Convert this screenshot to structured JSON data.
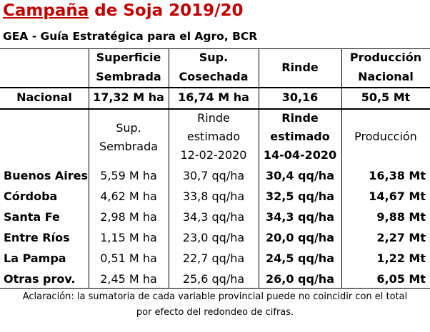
{
  "title_prefix": "Campaña",
  "title_rest": " de Soja 2019/20",
  "subtitle": "GEA - Guía Estratégica para el Agro, BCR",
  "header1": {
    "col1": [
      "Superficie",
      "Sembrada"
    ],
    "col2": [
      "Sup.",
      "Cosechada"
    ],
    "col3": "Rinde",
    "col4": [
      "Producción",
      "Nacional"
    ]
  },
  "national": {
    "label": "Nacional",
    "surface": "17,32 M ha",
    "harvested": "16,74 M ha",
    "yield": "30,16",
    "production": "50,5 Mt"
  },
  "header2": {
    "col1": [
      "Sup.",
      "Sembrada"
    ],
    "col2": [
      "Rinde",
      "estimado",
      "12-02-2020"
    ],
    "col3": [
      "Rinde",
      "estimado",
      "14-04-2020"
    ],
    "col4": "Producción"
  },
  "provinces": [
    {
      "name": "Buenos Aires",
      "surface": "5,59 M ha",
      "yield_feb": "30,7 qq/ha",
      "yield_apr": "30,4 qq/ha",
      "production": "16,38 Mt"
    },
    {
      "name": "Córdoba",
      "surface": "4,62 M ha",
      "yield_feb": "33,8 qq/ha",
      "yield_apr": "32,5 qq/ha",
      "production": "14,67 Mt"
    },
    {
      "name": "Santa Fe",
      "surface": "2,98 M ha",
      "yield_feb": "34,3 qq/ha",
      "yield_apr": "34,3 qq/ha",
      "production": "9,88 Mt"
    },
    {
      "name": "Entre Ríos",
      "surface": "1,15 M ha",
      "yield_feb": "23,0 qq/ha",
      "yield_apr": "20,0 qq/ha",
      "production": "2,27 Mt"
    },
    {
      "name": "La Pampa",
      "surface": "0,51 M ha",
      "yield_feb": "22,7 qq/ha",
      "yield_apr": "24,5 qq/ha",
      "production": "1,22 Mt"
    },
    {
      "name": "Otras prov.",
      "surface": "2,45 M ha",
      "yield_feb": "25,6 qq/ha",
      "yield_apr": "26,0 qq/ha",
      "production": "6,05 Mt"
    }
  ],
  "footnote": [
    "Aclaración: la sumatoria de cada variable provincial puede no coincidir con el total",
    "por efecto del redondeo de cifras."
  ],
  "colors": {
    "title_accent": "#c00000",
    "text": "#000000",
    "background": "#ffffff"
  }
}
